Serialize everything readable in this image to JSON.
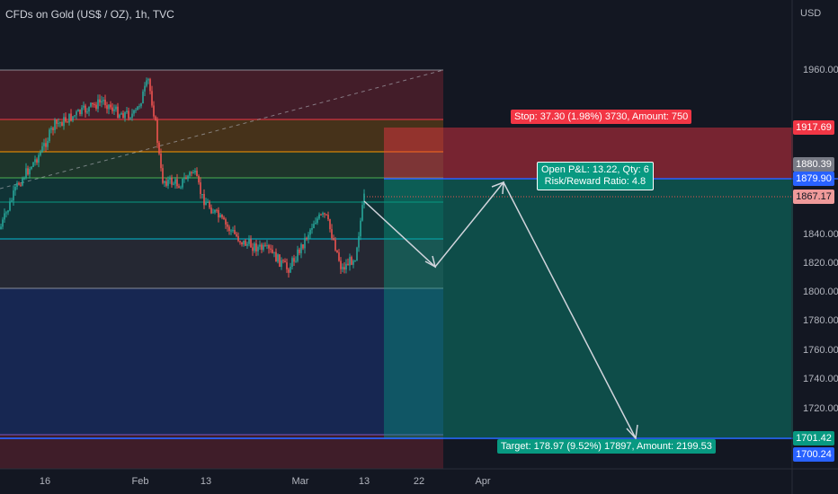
{
  "header": {
    "symbol_title": "CFDs on Gold (US$ / OZ), 1h, TVC",
    "currency": "USD"
  },
  "price_axis": {
    "ticks": [
      "1960.00",
      "1840.00",
      "1820.00",
      "1800.00",
      "1780.00",
      "1760.00",
      "1740.00",
      "1720.00"
    ],
    "labels": {
      "stop": "1917.69",
      "current": "1880.39",
      "entry": "1879.90",
      "last": "1867.17",
      "target": "1701.42",
      "support": "1700.24"
    }
  },
  "time_axis": {
    "ticks": [
      "16",
      "Feb",
      "13",
      "Mar",
      "13",
      "22",
      "Apr"
    ]
  },
  "position": {
    "stop_label": "Stop: 37.30 (1.98%) 3730, Amount: 750",
    "pnl_line1": "Open P&L: 13.22, Qty: 6",
    "pnl_line2": "Risk/Reward Ratio: 4.8",
    "target_label": "Target: 178.97 (9.52%) 17897, Amount: 2199.53"
  },
  "colors": {
    "background": "#131722",
    "stop_zone": "#f23645",
    "target_zone": "#089981",
    "price_line": "#2962ff",
    "candle_up": "#26a69a",
    "candle_down": "#ef5350"
  }
}
